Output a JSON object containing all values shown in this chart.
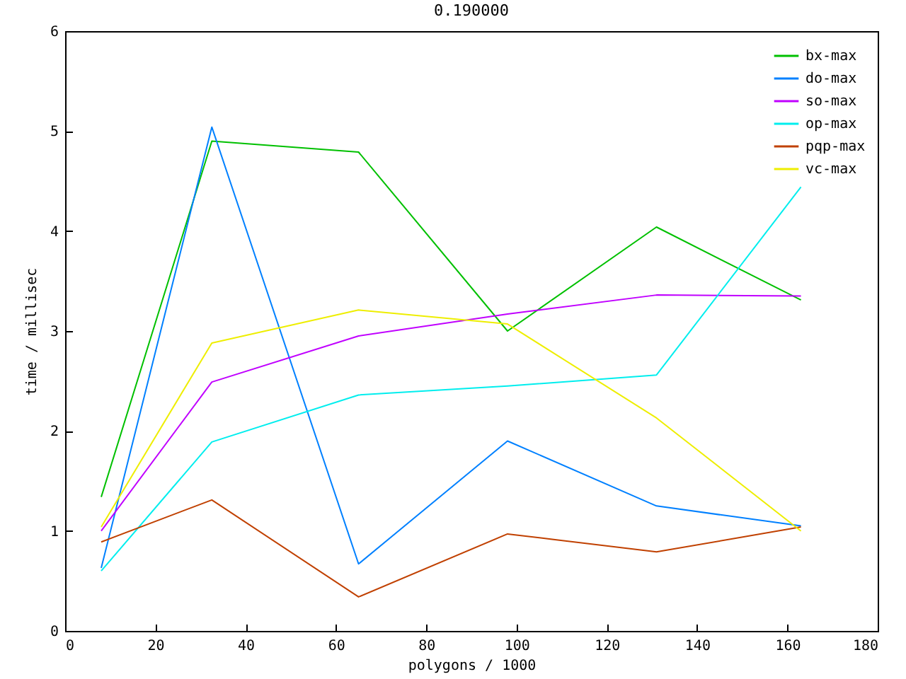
{
  "chart_data": {
    "type": "line",
    "title": "0.190000",
    "xlabel": "polygons / 1000",
    "ylabel": "time / millisec",
    "x": [
      8,
      32.5,
      65,
      98,
      131,
      163
    ],
    "series": [
      {
        "name": "bx-max",
        "color": "#00c000",
        "values": [
          1.34,
          4.9,
          4.79,
          3.0,
          4.04,
          3.31
        ]
      },
      {
        "name": "do-max",
        "color": "#0080ff",
        "values": [
          0.63,
          5.04,
          0.67,
          1.9,
          1.25,
          1.05
        ]
      },
      {
        "name": "so-max",
        "color": "#c000ff",
        "values": [
          1.0,
          2.49,
          2.95,
          3.17,
          3.36,
          3.35
        ]
      },
      {
        "name": "op-max",
        "color": "#00eeee",
        "values": [
          0.6,
          1.89,
          2.36,
          2.45,
          2.56,
          4.44
        ]
      },
      {
        "name": "pqp-max",
        "color": "#c04000",
        "values": [
          0.89,
          1.31,
          0.34,
          0.97,
          0.79,
          1.04
        ]
      },
      {
        "name": "vc-max",
        "color": "#eeee00",
        "values": [
          1.04,
          2.88,
          3.21,
          3.07,
          2.13,
          1.0
        ]
      }
    ],
    "xlim": [
      0,
      180
    ],
    "xticks": [
      0,
      20,
      40,
      60,
      80,
      100,
      120,
      140,
      160,
      180
    ],
    "ylim": [
      0,
      6
    ],
    "yticks": [
      0,
      1,
      2,
      3,
      4,
      5,
      6
    ],
    "grid": false,
    "legend": "top right",
    "marker": "none",
    "line_style": "solid"
  }
}
